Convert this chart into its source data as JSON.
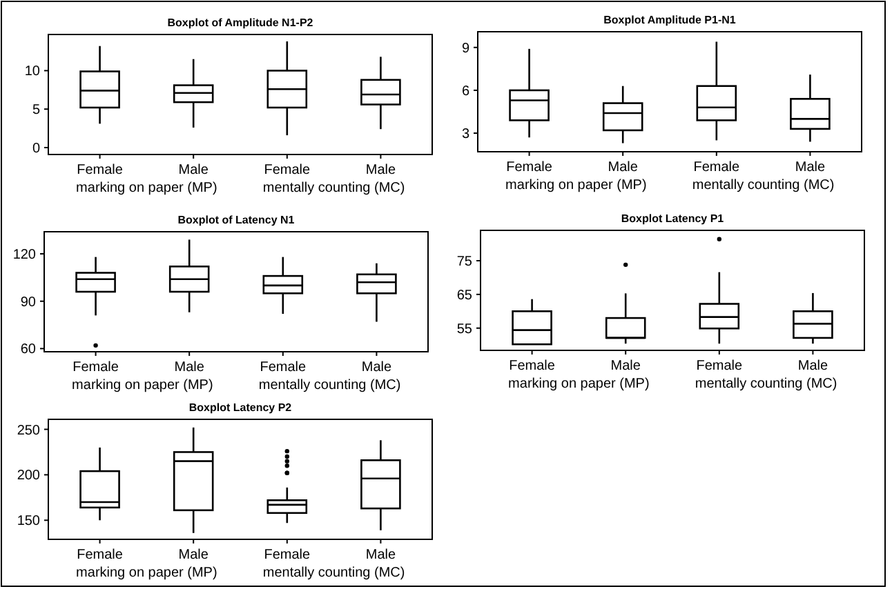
{
  "chart_data": [
    {
      "type": "box",
      "title": "Boxplot of Amplitude N1-P2",
      "categories": [
        "Female",
        "Male",
        "Female",
        "Male"
      ],
      "annotations": [
        "marking on paper (MP)",
        "mentally counting (MC)"
      ],
      "ylim": [
        -0.9,
        14.7
      ],
      "yticks": [
        0,
        5,
        10
      ],
      "boxes": [
        {
          "low": 3.1,
          "q1": 5.2,
          "median": 7.4,
          "q3": 9.9,
          "high": 13.2
        },
        {
          "low": 2.6,
          "q1": 5.9,
          "median": 7.1,
          "q3": 8.1,
          "high": 11.5
        },
        {
          "low": 1.6,
          "q1": 5.2,
          "median": 7.6,
          "q3": 10.0,
          "high": 13.8
        },
        {
          "low": 2.4,
          "q1": 5.6,
          "median": 6.9,
          "q3": 8.8,
          "high": 11.8
        }
      ]
    },
    {
      "type": "box",
      "title": "Boxplot Amplitude P1-N1",
      "categories": [
        "Female",
        "Male",
        "Female",
        "Male"
      ],
      "annotations": [
        "marking on paper (MP)",
        "mentally counting (MC)"
      ],
      "ylim": [
        1.7,
        10.1
      ],
      "yticks": [
        3,
        6,
        9
      ],
      "boxes": [
        {
          "low": 2.7,
          "q1": 3.9,
          "median": 5.3,
          "q3": 6.0,
          "high": 8.9
        },
        {
          "low": 2.3,
          "q1": 3.2,
          "median": 4.4,
          "q3": 5.1,
          "high": 6.3
        },
        {
          "low": 2.5,
          "q1": 3.9,
          "median": 4.8,
          "q3": 6.3,
          "high": 9.4
        },
        {
          "low": 2.4,
          "q1": 3.3,
          "median": 4.0,
          "q3": 5.4,
          "high": 7.1
        }
      ]
    },
    {
      "type": "box",
      "title": "Boxplot of Latency N1",
      "categories": [
        "Female",
        "Male",
        "Female",
        "Male"
      ],
      "annotations": [
        "marking on paper (MP)",
        "mentally counting (MC)"
      ],
      "ylim": [
        58,
        134
      ],
      "yticks": [
        60,
        90,
        120
      ],
      "boxes": [
        {
          "low": 81,
          "q1": 96,
          "median": 104,
          "q3": 108,
          "high": 118,
          "outliers": [
            62
          ]
        },
        {
          "low": 83,
          "q1": 96,
          "median": 104,
          "q3": 112,
          "high": 129
        },
        {
          "low": 82,
          "q1": 95,
          "median": 100,
          "q3": 106,
          "high": 118
        },
        {
          "low": 77,
          "q1": 95,
          "median": 102,
          "q3": 107,
          "high": 114
        }
      ]
    },
    {
      "type": "box",
      "title": "Boxplot Latency P1",
      "categories": [
        "Female",
        "Male",
        "Female",
        "Male"
      ],
      "annotations": [
        "marking on paper (MP)",
        "mentally counting (MC)"
      ],
      "ylim": [
        48.4,
        84
      ],
      "yticks": [
        55,
        65,
        75
      ],
      "boxes": [
        {
          "low": 50.2,
          "q1": 50.2,
          "median": 54.4,
          "q3": 60,
          "high": 63.6
        },
        {
          "low": 50.4,
          "q1": 52.1,
          "median": 52.1,
          "q3": 58,
          "high": 65.3,
          "outliers": [
            73.8
          ]
        },
        {
          "low": 50.4,
          "q1": 54.9,
          "median": 58.3,
          "q3": 62.2,
          "high": 71.6,
          "outliers": [
            81.4
          ]
        },
        {
          "low": 50.4,
          "q1": 52.1,
          "median": 56.3,
          "q3": 60,
          "high": 65.4
        }
      ]
    },
    {
      "type": "box",
      "title": "Boxplot Latency P2",
      "categories": [
        "Female",
        "Male",
        "Female",
        "Male"
      ],
      "annotations": [
        "marking on paper (MP)",
        "mentally counting (MC)"
      ],
      "ylim": [
        129,
        261
      ],
      "yticks": [
        150,
        200,
        250
      ],
      "boxes": [
        {
          "low": 150,
          "q1": 164,
          "median": 170,
          "q3": 204,
          "high": 230
        },
        {
          "low": 136,
          "q1": 161,
          "median": 215,
          "q3": 225,
          "high": 252
        },
        {
          "low": 147,
          "q1": 158,
          "median": 167,
          "q3": 172,
          "high": 186,
          "outliers": [
            226,
            220,
            215,
            210,
            202,
            202
          ]
        },
        {
          "low": 139,
          "q1": 163,
          "median": 196,
          "q3": 216,
          "high": 238
        }
      ]
    }
  ]
}
